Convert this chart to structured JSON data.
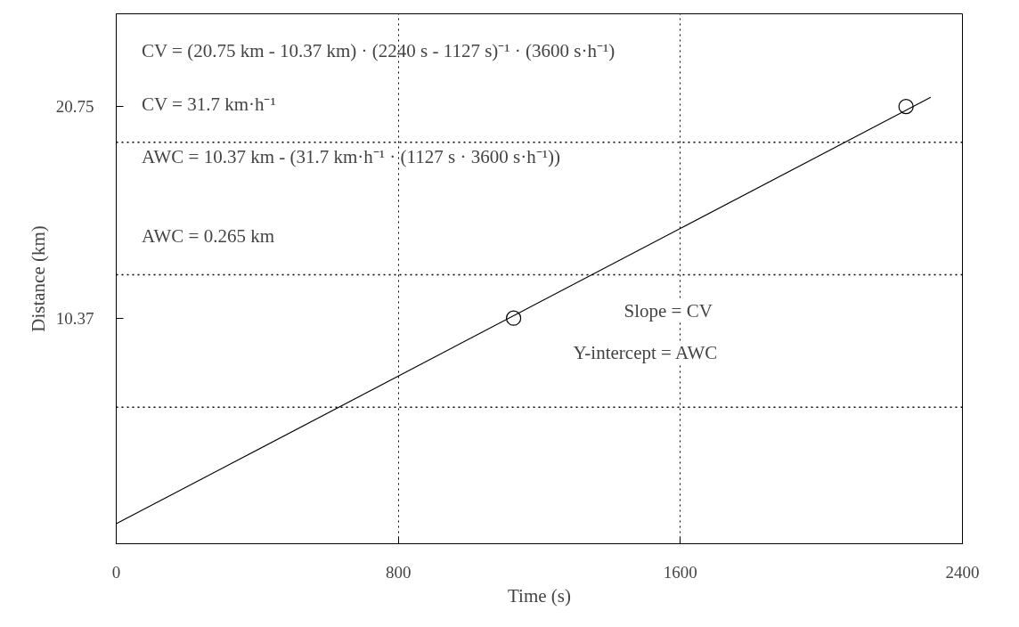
{
  "chart_data": {
    "type": "scatter",
    "xlabel": "Time (s)",
    "ylabel": "Distance (km)",
    "xlim": [
      0,
      2400
    ],
    "ylim": [
      -0.7,
      25.3
    ],
    "xticks": [
      0,
      800,
      1600,
      2400
    ],
    "yticks": [
      10.37,
      20.75
    ],
    "grid": "x",
    "marker": "circle",
    "series": [
      {
        "x": [
          1127,
          2240
        ],
        "values": [
          10.37,
          20.75
        ],
        "color": "#000000"
      },
      {
        "type": "line",
        "x": [
          0,
          2310
        ],
        "values": [
          0.28,
          21.2
        ],
        "color": "#000000",
        "marker": "none",
        "line_style": "solid"
      }
    ],
    "ref_lines": [
      {
        "axis": "y",
        "value": 6.0,
        "label": null,
        "color": "#000000",
        "line_style": "dotted"
      },
      {
        "axis": "y",
        "value": 12.5,
        "label": null,
        "color": "#000000",
        "line_style": "dotted"
      },
      {
        "axis": "y",
        "value": 19.0,
        "label": null,
        "color": "#000000",
        "line_style": "dotted"
      }
    ],
    "annotations": [
      "CV = (20.75 km - 10.37 km) · (2240 s - 1127 s)⁻¹ · (3600 s·h⁻¹)",
      "CV = 31.7 km·h⁻¹",
      "AWC = 10.37 km - (31.7 km·h⁻¹ · (1127 s · 3600 s·h⁻¹))",
      "AWC = 0.265 km",
      "Slope = CV",
      "Y-intercept = AWC"
    ]
  }
}
